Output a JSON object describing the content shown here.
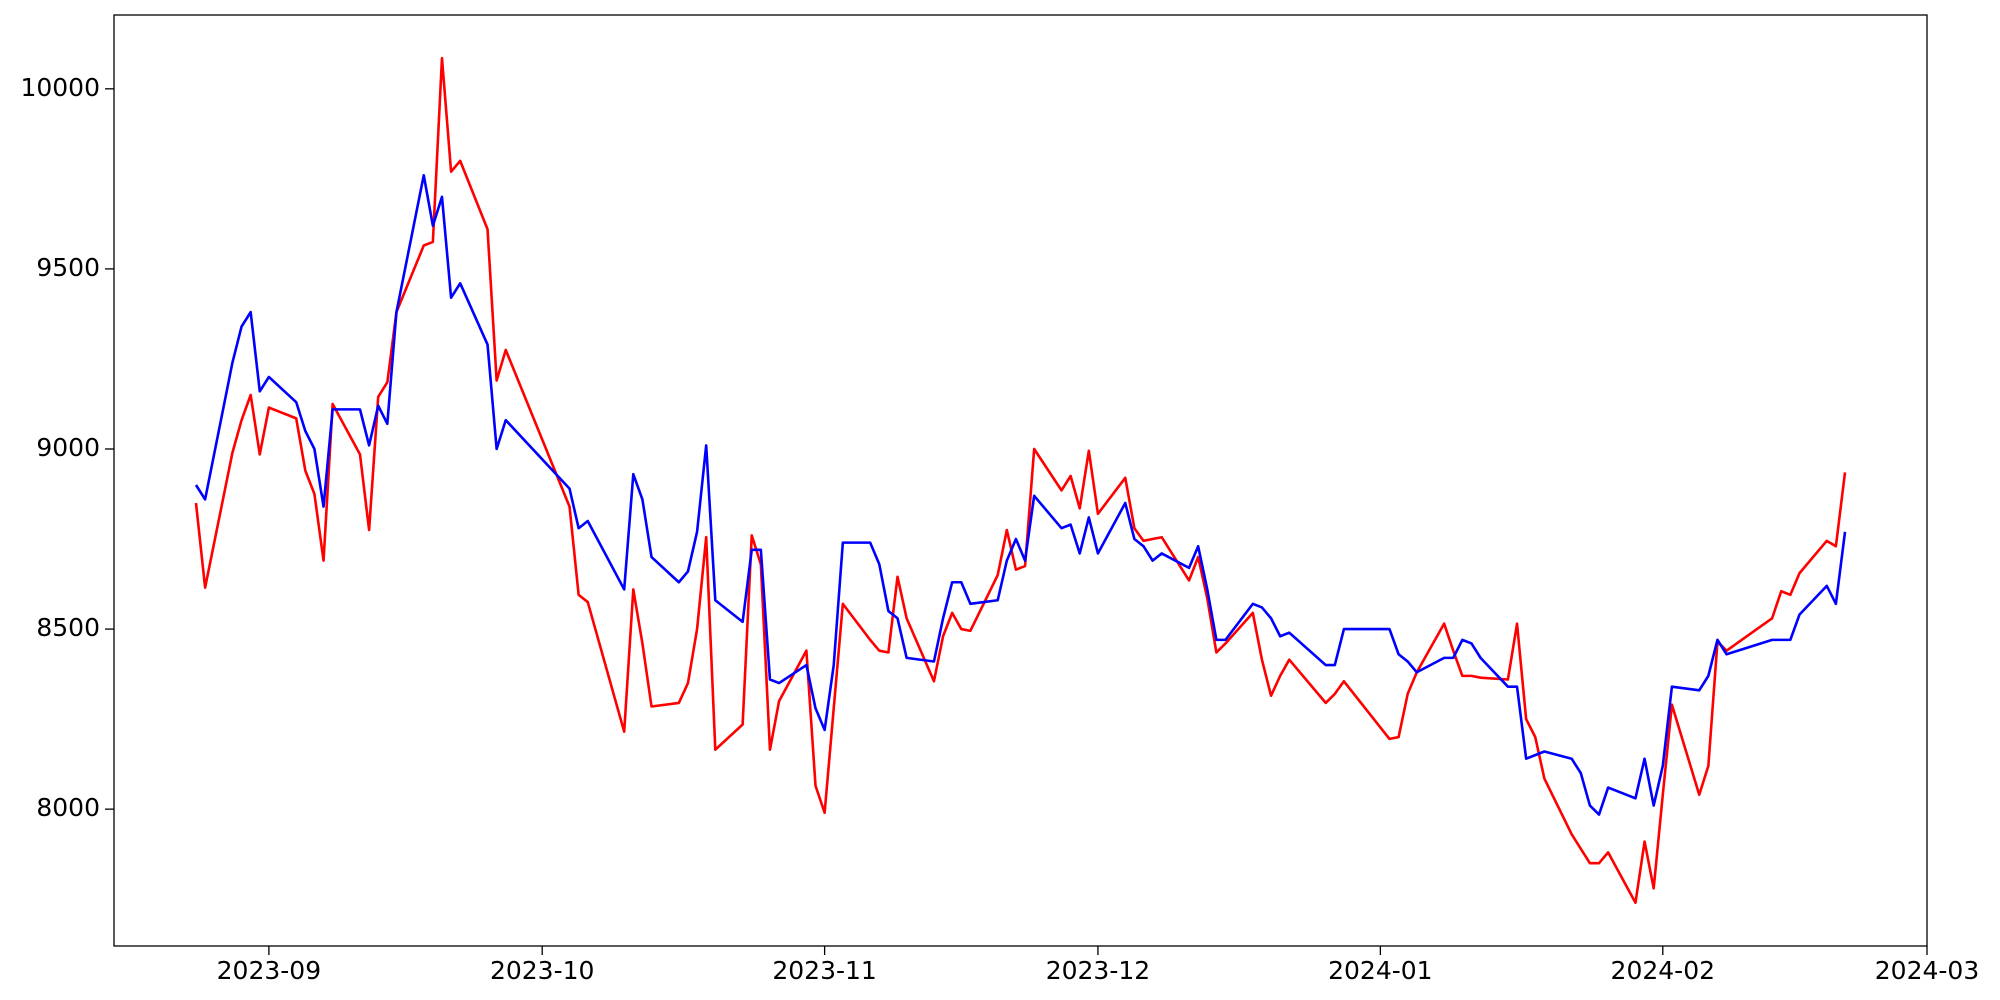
{
  "chart_data": {
    "type": "line",
    "x": [
      "2023-08-24",
      "2023-08-25",
      "2023-08-28",
      "2023-08-29",
      "2023-08-30",
      "2023-08-31",
      "2023-09-01",
      "2023-09-04",
      "2023-09-05",
      "2023-09-06",
      "2023-09-07",
      "2023-09-08",
      "2023-09-11",
      "2023-09-12",
      "2023-09-13",
      "2023-09-14",
      "2023-09-15",
      "2023-09-18",
      "2023-09-19",
      "2023-09-20",
      "2023-09-21",
      "2023-09-22",
      "2023-09-25",
      "2023-09-26",
      "2023-09-27",
      "2023-10-04",
      "2023-10-05",
      "2023-10-06",
      "2023-10-10",
      "2023-10-11",
      "2023-10-12",
      "2023-10-13",
      "2023-10-16",
      "2023-10-17",
      "2023-10-18",
      "2023-10-19",
      "2023-10-20",
      "2023-10-23",
      "2023-10-24",
      "2023-10-25",
      "2023-10-26",
      "2023-10-27",
      "2023-10-30",
      "2023-10-31",
      "2023-11-01",
      "2023-11-02",
      "2023-11-03",
      "2023-11-06",
      "2023-11-07",
      "2023-11-08",
      "2023-11-09",
      "2023-11-10",
      "2023-11-13",
      "2023-11-14",
      "2023-11-15",
      "2023-11-16",
      "2023-11-17",
      "2023-11-20",
      "2023-11-21",
      "2023-11-22",
      "2023-11-23",
      "2023-11-24",
      "2023-11-27",
      "2023-11-28",
      "2023-11-29",
      "2023-11-30",
      "2023-12-01",
      "2023-12-04",
      "2023-12-05",
      "2023-12-06",
      "2023-12-07",
      "2023-12-08",
      "2023-12-11",
      "2023-12-12",
      "2023-12-13",
      "2023-12-14",
      "2023-12-15",
      "2023-12-18",
      "2023-12-19",
      "2023-12-20",
      "2023-12-21",
      "2023-12-22",
      "2023-12-26",
      "2023-12-27",
      "2023-12-28",
      "2024-01-02",
      "2024-01-03",
      "2024-01-04",
      "2024-01-05",
      "2024-01-08",
      "2024-01-09",
      "2024-01-10",
      "2024-01-11",
      "2024-01-12",
      "2024-01-15",
      "2024-01-16",
      "2024-01-17",
      "2024-01-18",
      "2024-01-19",
      "2024-01-22",
      "2024-01-23",
      "2024-01-24",
      "2024-01-25",
      "2024-01-26",
      "2024-01-29",
      "2024-01-30",
      "2024-01-31",
      "2024-02-01",
      "2024-02-02",
      "2024-02-05",
      "2024-02-06",
      "2024-02-07",
      "2024-02-08",
      "2024-02-13",
      "2024-02-14",
      "2024-02-15",
      "2024-02-16",
      "2024-02-19",
      "2024-02-20",
      "2024-02-21"
    ],
    "series": [
      {
        "color": "#ff0000",
        "values": [
          8850,
          8615,
          8990,
          9080,
          9150,
          8985,
          9115,
          9085,
          8940,
          8875,
          8690,
          9125,
          8985,
          8775,
          9145,
          9185,
          9380,
          9565,
          9575,
          10085,
          9770,
          9800,
          9610,
          9190,
          9275,
          8840,
          8595,
          8575,
          8215,
          8610,
          8460,
          8285,
          8295,
          8350,
          8500,
          8755,
          8165,
          8235,
          8760,
          8680,
          8165,
          8300,
          8440,
          8065,
          7990,
          8280,
          8570,
          8470,
          8440,
          8435,
          8645,
          8530,
          8355,
          8480,
          8545,
          8500,
          8495,
          8650,
          8775,
          8665,
          8675,
          9000,
          8885,
          8925,
          8835,
          8995,
          8820,
          8920,
          8780,
          8745,
          8750,
          8755,
          8635,
          8700,
          8585,
          8435,
          8460,
          8545,
          8415,
          8315,
          8370,
          8415,
          8295,
          8320,
          8355,
          8195,
          8200,
          8320,
          8380,
          8515,
          8440,
          8370,
          8370,
          8365,
          8360,
          8515,
          8250,
          8200,
          8085,
          7930,
          7890,
          7850,
          7850,
          7880,
          7740,
          7910,
          7780,
          8040,
          8290,
          8040,
          8120,
          8465,
          8440,
          8530,
          8605,
          8595,
          8655,
          8745,
          8730,
          8935
        ]
      },
      {
        "color": "#0000ff",
        "values": [
          8900,
          8860,
          9240,
          9340,
          9380,
          9160,
          9200,
          9130,
          9050,
          9000,
          8840,
          9110,
          9110,
          9010,
          9120,
          9070,
          9380,
          9760,
          9620,
          9700,
          9420,
          9460,
          9290,
          9000,
          9080,
          8890,
          8780,
          8800,
          8610,
          8930,
          8860,
          8700,
          8630,
          8660,
          8770,
          9010,
          8580,
          8520,
          8720,
          8720,
          8360,
          8350,
          8400,
          8280,
          8220,
          8400,
          8740,
          8740,
          8680,
          8550,
          8530,
          8420,
          8410,
          8530,
          8630,
          8630,
          8570,
          8580,
          8690,
          8750,
          8690,
          8870,
          8780,
          8790,
          8710,
          8810,
          8710,
          8850,
          8750,
          8730,
          8690,
          8710,
          8670,
          8730,
          8610,
          8470,
          8470,
          8570,
          8560,
          8530,
          8480,
          8490,
          8400,
          8400,
          8500,
          8500,
          8430,
          8410,
          8380,
          8420,
          8420,
          8470,
          8460,
          8420,
          8340,
          8340,
          8140,
          8150,
          8160,
          8140,
          8100,
          8010,
          7985,
          8060,
          8030,
          8140,
          8010,
          8120,
          8340,
          8330,
          8370,
          8470,
          8430,
          8470,
          8470,
          8470,
          8540,
          8620,
          8570,
          8770
        ]
      }
    ],
    "xlim": [
      "2023-08-15",
      "2024-03-01"
    ],
    "xticks": [
      "2023-09",
      "2023-10",
      "2023-11",
      "2023-12",
      "2024-01",
      "2024-02",
      "2024-03"
    ],
    "ylim": [
      7620,
      10205
    ],
    "yticks": [
      8000,
      8500,
      9000,
      9500,
      10000
    ],
    "grid": false
  }
}
